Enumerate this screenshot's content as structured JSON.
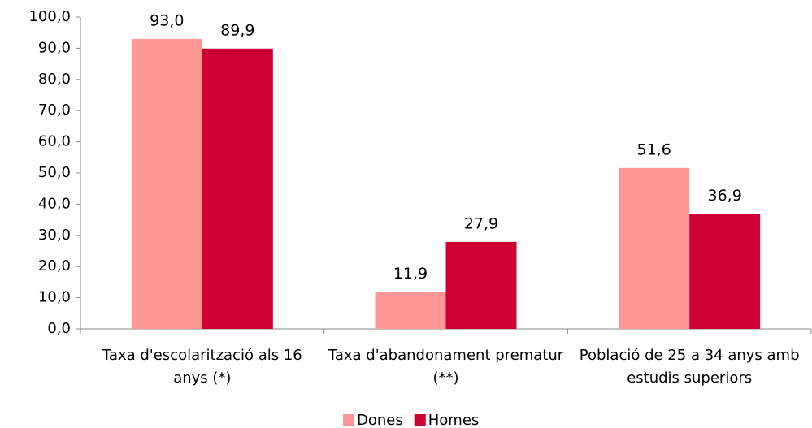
{
  "chart_data": {
    "type": "bar",
    "categories": [
      "Taxa d'escolarització als 16 anys (*)",
      "Taxa d'abandonament prematur (**)",
      "Població de 25 a 34 anys amb estudis superiors"
    ],
    "series": [
      {
        "name": "Dones",
        "color": "#ff9797",
        "values": [
          93.0,
          11.9,
          51.6
        ],
        "value_labels": [
          "93,0",
          "11,9",
          "51,6"
        ]
      },
      {
        "name": "Homes",
        "color": "#cc0033",
        "values": [
          89.9,
          27.9,
          36.9
        ],
        "value_labels": [
          "89,9",
          "27,9",
          "36,9"
        ]
      }
    ],
    "ylim": [
      0,
      100
    ],
    "yticks": [
      {
        "value": 0,
        "label": "0,0"
      },
      {
        "value": 10,
        "label": "10,0"
      },
      {
        "value": 20,
        "label": "20,0"
      },
      {
        "value": 30,
        "label": "30,0"
      },
      {
        "value": 40,
        "label": "40,0"
      },
      {
        "value": 50,
        "label": "50,0"
      },
      {
        "value": 60,
        "label": "60,0"
      },
      {
        "value": 70,
        "label": "70,0"
      },
      {
        "value": 80,
        "label": "80,0"
      },
      {
        "value": 90,
        "label": "90,0"
      },
      {
        "value": 100,
        "label": "100,0"
      }
    ],
    "legend": "bottom"
  }
}
